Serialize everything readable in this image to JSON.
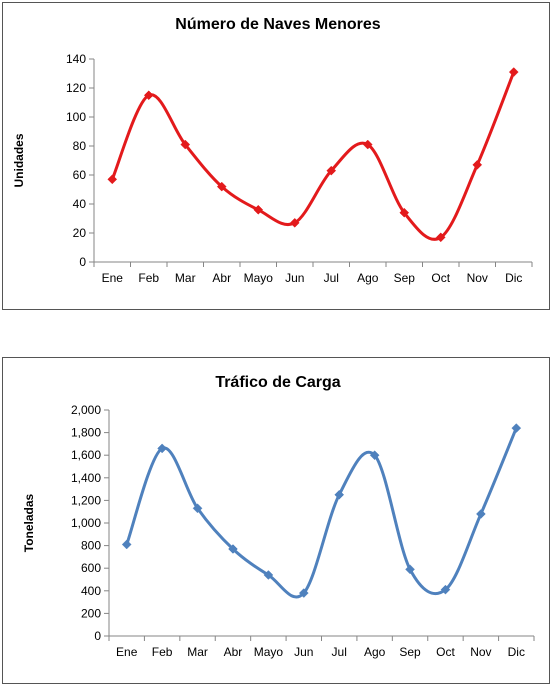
{
  "chart_data": [
    {
      "type": "line",
      "title": "Número de Naves Menores",
      "xlabel": "",
      "ylabel": "Unidades",
      "categories": [
        "Ene",
        "Feb",
        "Mar",
        "Abr",
        "Mayo",
        "Jun",
        "Jul",
        "Ago",
        "Sep",
        "Oct",
        "Nov",
        "Dic"
      ],
      "series": [
        {
          "values": [
            57,
            115,
            81,
            52,
            36,
            27,
            63,
            81,
            34,
            17,
            67,
            131
          ],
          "color": "#e31a1c"
        }
      ],
      "ylim": [
        0,
        140
      ],
      "yticks": [
        "0",
        "20",
        "40",
        "60",
        "80",
        "100",
        "120",
        "140"
      ],
      "ytick_values": [
        0,
        20,
        40,
        60,
        80,
        100,
        120,
        140
      ],
      "smooth": true,
      "marker": "diamond",
      "grid": false,
      "legend": "none"
    },
    {
      "type": "line",
      "title": "Tráfico de Carga",
      "xlabel": "",
      "ylabel": "Toneladas",
      "categories": [
        "Ene",
        "Feb",
        "Mar",
        "Abr",
        "Mayo",
        "Jun",
        "Jul",
        "Ago",
        "Sep",
        "Oct",
        "Nov",
        "Dic"
      ],
      "series": [
        {
          "values": [
            810,
            1660,
            1130,
            770,
            540,
            380,
            1250,
            1600,
            590,
            410,
            1080,
            1840
          ],
          "color": "#4f81bd"
        }
      ],
      "ylim": [
        0,
        2000
      ],
      "yticks": [
        "0",
        "200",
        "400",
        "600",
        "800",
        "1,000",
        "1,200",
        "1,400",
        "1,600",
        "1,800",
        "2,000"
      ],
      "ytick_values": [
        0,
        200,
        400,
        600,
        800,
        1000,
        1200,
        1400,
        1600,
        1800,
        2000
      ],
      "smooth": true,
      "marker": "diamond",
      "grid": false,
      "legend": "none"
    }
  ]
}
